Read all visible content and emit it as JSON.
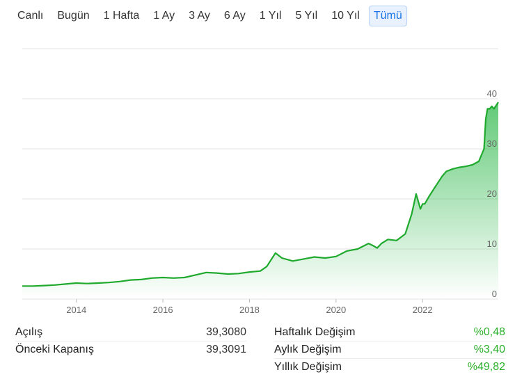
{
  "range_tabs": [
    {
      "label": "Canlı"
    },
    {
      "label": "Bugün"
    },
    {
      "label": "1 Hafta"
    },
    {
      "label": "1 Ay"
    },
    {
      "label": "3 Ay"
    },
    {
      "label": "6 Ay"
    },
    {
      "label": "1 Yıl"
    },
    {
      "label": "5 Yıl"
    },
    {
      "label": "10 Yıl"
    },
    {
      "label": "Tümü",
      "active": true
    }
  ],
  "chart_data": {
    "type": "area",
    "title": "",
    "xlabel": "",
    "ylabel": "",
    "x_ticks": [
      "2014",
      "2016",
      "2018",
      "2020",
      "2022"
    ],
    "y_ticks": [
      0,
      10,
      20,
      30,
      40
    ],
    "ylim": [
      0,
      50
    ],
    "xlim": [
      2012.75,
      2023.75
    ],
    "grid": true,
    "colors": {
      "line": "#1faa2e",
      "fill": "#2db84a"
    },
    "series": [
      {
        "x": [
          2012.75,
          2013.0,
          2013.25,
          2013.5,
          2013.75,
          2014.0,
          2014.25,
          2014.5,
          2014.75,
          2015.0,
          2015.25,
          2015.5,
          2015.75,
          2016.0,
          2016.25,
          2016.5,
          2016.75,
          2017.0,
          2017.25,
          2017.5,
          2017.75,
          2018.0,
          2018.25,
          2018.4,
          2018.6,
          2018.75,
          2019.0,
          2019.25,
          2019.5,
          2019.75,
          2020.0,
          2020.25,
          2020.5,
          2020.75,
          2020.85,
          2020.95,
          2021.05,
          2021.2,
          2021.4,
          2021.6,
          2021.75,
          2021.85,
          2021.95,
          2022.0,
          2022.05,
          2022.15,
          2022.3,
          2022.45,
          2022.55,
          2022.7,
          2022.85,
          2023.0,
          2023.15,
          2023.3,
          2023.42,
          2023.46,
          2023.5,
          2023.55,
          2023.6,
          2023.65,
          2023.75
        ],
        "values": [
          2.6,
          2.6,
          2.7,
          2.8,
          3.0,
          3.2,
          3.1,
          3.2,
          3.3,
          3.5,
          3.8,
          3.9,
          4.2,
          4.3,
          4.2,
          4.3,
          4.8,
          5.3,
          5.2,
          5.0,
          5.1,
          5.4,
          5.6,
          6.5,
          9.2,
          8.2,
          7.6,
          8.0,
          8.4,
          8.2,
          8.5,
          9.6,
          10.0,
          11.1,
          10.7,
          10.2,
          11.1,
          11.9,
          11.7,
          13.0,
          17.0,
          21.0,
          18.0,
          19.0,
          19.0,
          20.5,
          22.5,
          24.5,
          25.5,
          26.0,
          26.3,
          26.5,
          26.8,
          27.5,
          30.0,
          36.0,
          38.0,
          38.0,
          38.5,
          38.0,
          39.3
        ]
      }
    ]
  },
  "stats": {
    "left": [
      {
        "label": "Açılış",
        "value": "39,3080"
      },
      {
        "label": "Önceki Kapanış",
        "value": "39,3091"
      }
    ],
    "right": [
      {
        "label": "Haftalık Değişim",
        "value": "%0,48"
      },
      {
        "label": "Aylık Değişim",
        "value": "%3,40"
      },
      {
        "label": "Yıllık Değişim",
        "value": "%49,82"
      }
    ]
  }
}
